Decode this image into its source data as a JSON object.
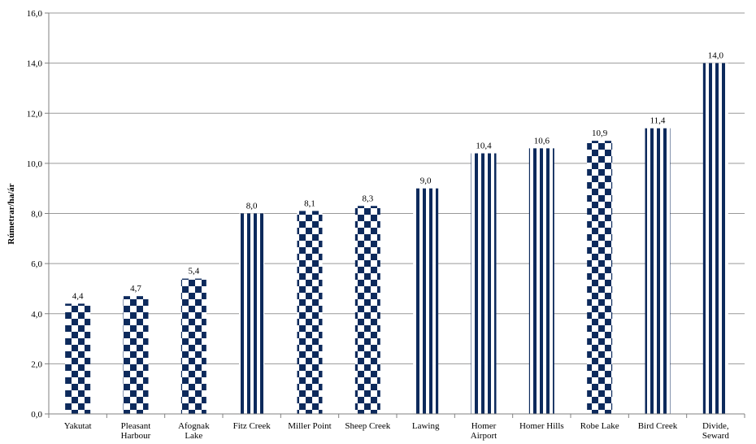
{
  "chart_data": {
    "type": "bar",
    "title": "",
    "xlabel": "",
    "ylabel": "Rúmetrar/ha/ár",
    "ylim": [
      0,
      16
    ],
    "yticks": [
      0,
      2,
      4,
      6,
      8,
      10,
      12,
      14,
      16
    ],
    "ytick_labels": [
      "0,0",
      "2,0",
      "4,0",
      "6,0",
      "8,0",
      "10,0",
      "12,0",
      "14,0",
      "16,0"
    ],
    "grid": true,
    "legend": "none",
    "categories": [
      [
        "Yakutat"
      ],
      [
        "Pleasant",
        "Harbour"
      ],
      [
        "Afognak",
        "Lake"
      ],
      [
        "Fitz Creek"
      ],
      [
        "Miller Point"
      ],
      [
        "Sheep Creek"
      ],
      [
        "Lawing"
      ],
      [
        "Homer",
        "Airport"
      ],
      [
        "Homer Hills"
      ],
      [
        "Robe Lake"
      ],
      [
        "Bird Creek"
      ],
      [
        "Divide,",
        "Seward"
      ]
    ],
    "values": [
      4.4,
      4.7,
      5.4,
      8.0,
      8.1,
      8.3,
      9.0,
      10.4,
      10.6,
      10.9,
      11.4,
      14.0
    ],
    "value_labels": [
      "4,4",
      "4,7",
      "5,4",
      "8,0",
      "8,1",
      "8,3",
      "9,0",
      "10,4",
      "10,6",
      "10,9",
      "11,4",
      "14,0"
    ],
    "patterns": [
      "checker",
      "checker",
      "checker",
      "stripes",
      "checker",
      "checker",
      "stripes",
      "stripes",
      "stripes",
      "checker",
      "stripes",
      "stripes"
    ],
    "colors": {
      "bar": "#0d2a5c",
      "background": "#ffffff",
      "grid": "#9a9a9a",
      "axis": "#808080"
    }
  }
}
